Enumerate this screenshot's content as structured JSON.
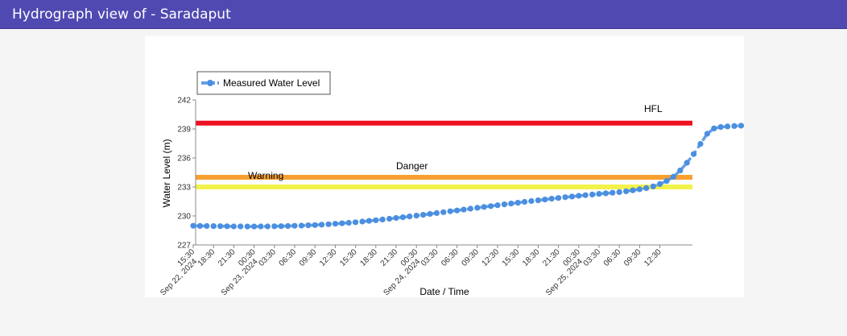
{
  "header": {
    "title": "Hydrograph view of - Saradaput"
  },
  "chart_data": {
    "type": "line",
    "xlabel": "Date / Time",
    "ylabel": "Water Level (m)",
    "ylim": [
      227,
      242
    ],
    "yticks": [
      "227",
      "230",
      "233",
      "236",
      "239",
      "242"
    ],
    "grid": false,
    "legend": {
      "position": "top-left",
      "entries": [
        "Measured Water Level"
      ]
    },
    "thresholds": [
      {
        "name": "HFL",
        "value": 239.6,
        "color": "#ee1122"
      },
      {
        "name": "Danger",
        "value": 234.0,
        "color": "#f7a030"
      },
      {
        "name": "Warning",
        "value": 233.0,
        "color": "#f2f24a"
      }
    ],
    "x_ticks": [
      {
        "time": "15:30",
        "date": "Sep 22, 2024"
      },
      {
        "time": "18:30",
        "date": ""
      },
      {
        "time": "21:30",
        "date": ""
      },
      {
        "time": "00:30",
        "date": "Sep 23, 2024"
      },
      {
        "time": "03:30",
        "date": ""
      },
      {
        "time": "06:30",
        "date": ""
      },
      {
        "time": "09:30",
        "date": ""
      },
      {
        "time": "12:30",
        "date": ""
      },
      {
        "time": "15:30",
        "date": ""
      },
      {
        "time": "18:30",
        "date": ""
      },
      {
        "time": "21:30",
        "date": ""
      },
      {
        "time": "00:30",
        "date": "Sep 24, 2024"
      },
      {
        "time": "03:30",
        "date": ""
      },
      {
        "time": "06:30",
        "date": ""
      },
      {
        "time": "09:30",
        "date": ""
      },
      {
        "time": "12:30",
        "date": ""
      },
      {
        "time": "15:30",
        "date": ""
      },
      {
        "time": "18:30",
        "date": ""
      },
      {
        "time": "21:30",
        "date": ""
      },
      {
        "time": "00:30",
        "date": "Sep 25, 2024"
      },
      {
        "time": "03:30",
        "date": ""
      },
      {
        "time": "06:30",
        "date": ""
      },
      {
        "time": "09:30",
        "date": ""
      },
      {
        "time": "12:30",
        "date": ""
      }
    ],
    "series": [
      {
        "name": "Measured Water Level",
        "color": "#4a8fe0",
        "x_start": "Sep 22, 2024 15:30",
        "x_step_hours": 1,
        "values": [
          228.98,
          228.97,
          228.96,
          228.95,
          228.94,
          228.93,
          228.92,
          228.92,
          228.91,
          228.91,
          228.92,
          228.92,
          228.93,
          228.94,
          228.96,
          228.98,
          229.0,
          229.03,
          229.06,
          229.1,
          229.14,
          229.19,
          229.24,
          229.29,
          229.35,
          229.42,
          229.49,
          229.56,
          229.63,
          229.71,
          229.79,
          229.87,
          229.95,
          230.03,
          230.12,
          230.21,
          230.3,
          230.39,
          230.48,
          230.57,
          230.66,
          230.75,
          230.84,
          230.93,
          231.02,
          231.11,
          231.2,
          231.28,
          231.37,
          231.46,
          231.54,
          231.62,
          231.7,
          231.78,
          231.86,
          231.94,
          232.01,
          232.08,
          232.15,
          232.22,
          232.28,
          232.34,
          232.4,
          232.47,
          232.55,
          232.65,
          232.76,
          232.88,
          233.05,
          233.3,
          233.62,
          234.05,
          234.7,
          235.5,
          236.4,
          237.45,
          238.5,
          239.05,
          239.2,
          239.26,
          239.3,
          239.33,
          239.36,
          239.4
        ]
      }
    ]
  }
}
